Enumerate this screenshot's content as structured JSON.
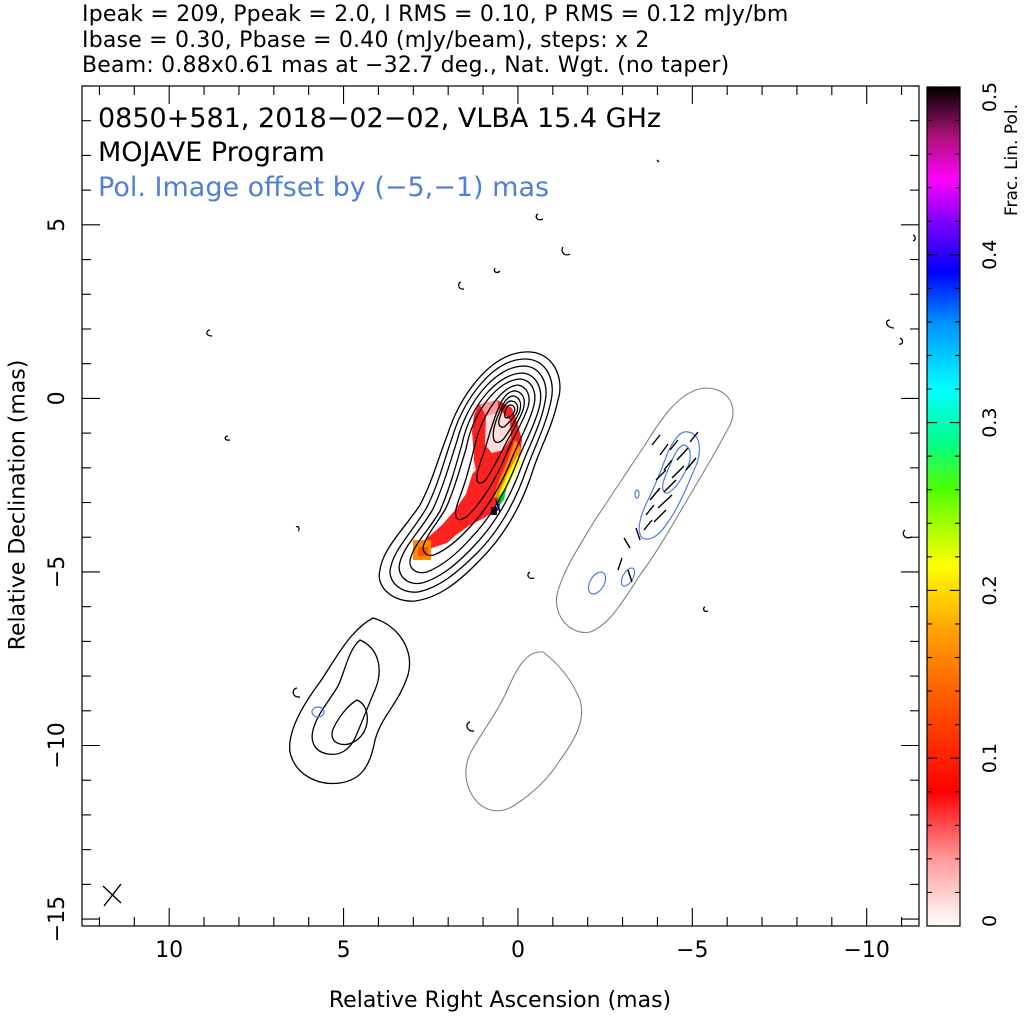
{
  "header": {
    "line1": "Ipeak = 209, Ppeak = 2.0, I RMS = 0.10, P RMS = 0.12 mJy/bm",
    "line2": "Ibase = 0.30, Pbase = 0.40 (mJy/beam), steps: x 2",
    "line3": "Beam: 0.88x0.61 mas at −32.7 deg., Nat. Wgt. (no taper)"
  },
  "annotations": {
    "source": "0850+581, 2018−02−02, VLBA 15.4 GHz",
    "program": "MOJAVE Program",
    "offset": "Pol. Image offset by (−5,−1) mas"
  },
  "chart_data": {
    "type": "heatmap",
    "xlabel": "Relative Right Ascension (mas)",
    "ylabel": "Relative Declination (mas)",
    "xlim": [
      12.5,
      -11.5
    ],
    "ylim": [
      -15.2,
      9
    ],
    "xticks": [
      "10",
      "5",
      "0",
      "−5",
      "−10"
    ],
    "yticks": [
      "5",
      "0",
      "−5",
      "−10",
      "−15"
    ],
    "xtick_values": [
      10,
      5,
      0,
      -5,
      -10
    ],
    "ytick_values": [
      5,
      0,
      -5,
      -10,
      -15
    ],
    "colorbar": {
      "label": "Frac. Lin. Pol.",
      "min": 0,
      "max": 0.5,
      "ticks": [
        "0",
        "0.1",
        "0.2",
        "0.3",
        "0.4",
        "0.5"
      ],
      "tick_values": [
        0,
        0.1,
        0.2,
        0.3,
        0.4,
        0.5
      ]
    },
    "stokes_i": {
      "peak": 209,
      "base": 0.3,
      "rms": 0.1,
      "unit": "mJy/beam",
      "step_factor": 2
    },
    "polarized": {
      "peak": 2.0,
      "base": 0.4,
      "rms": 0.12,
      "unit": "mJy/beam"
    },
    "beam": {
      "major_mas": 0.88,
      "minor_mas": 0.61,
      "pa_deg": -32.7
    }
  },
  "colors": {
    "pol_contour": "#4f7fdb",
    "offset_contour": "#808080"
  }
}
